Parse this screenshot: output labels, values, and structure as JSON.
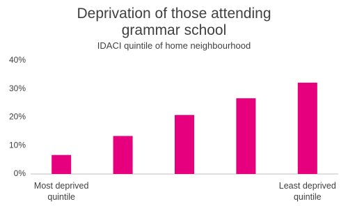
{
  "chart_data": {
    "type": "bar",
    "title": "Deprivation of those attending grammar school",
    "subtitle": "IDACI quintile of home neighbourhood",
    "categories": [
      "Most deprived quintile",
      null,
      null,
      null,
      "Least deprived quintile"
    ],
    "values": [
      6.7,
      13.4,
      20.8,
      26.7,
      32.2
    ],
    "color": "#e6007e",
    "ylim": [
      0,
      40
    ],
    "yticks": [
      {
        "value": 0,
        "label": "0%"
      },
      {
        "value": 10,
        "label": "10%"
      },
      {
        "value": 20,
        "label": "20%"
      },
      {
        "value": 30,
        "label": "30%"
      },
      {
        "value": 40,
        "label": "40%"
      }
    ],
    "grid": false
  }
}
